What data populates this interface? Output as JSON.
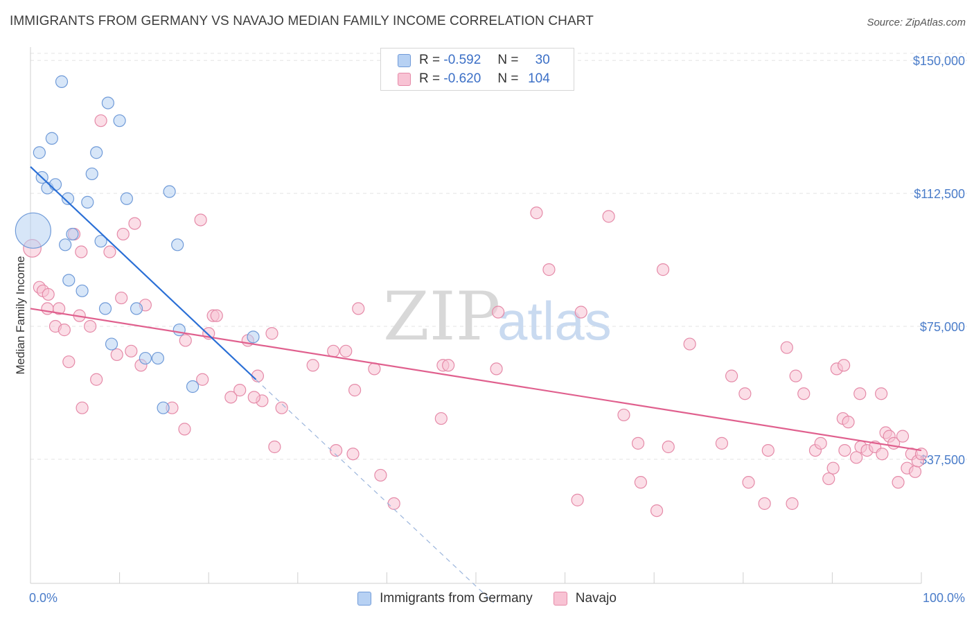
{
  "header": {
    "title": "IMMIGRANTS FROM GERMANY VS NAVAJO MEDIAN FAMILY INCOME CORRELATION CHART",
    "source": "Source: ZipAtlas.com"
  },
  "watermark": {
    "zip": "ZIP",
    "atlas": "atlas"
  },
  "legend": {
    "rows": [
      {
        "r_label": "R = ",
        "r_value": "-0.592",
        "n_label": "N = ",
        "n_value": "30"
      },
      {
        "r_label": "R = ",
        "r_value": "-0.620",
        "n_label": "N = ",
        "n_value": "104"
      }
    ]
  },
  "colors": {
    "germany_fill": "#b7d1f3",
    "germany_stroke": "#6f9ad8",
    "germany_line": "#2a6fd6",
    "navajo_fill": "#f8c3d4",
    "navajo_stroke": "#e58aa8",
    "navajo_line": "#e0608e",
    "tick_color": "#4a7cc9",
    "grid": "#e3e3e3"
  },
  "chart_data": {
    "type": "scatter",
    "ylabel": "Median Family Income",
    "xlabel": "",
    "x_range": [
      0,
      100
    ],
    "y_range": [
      2500,
      153750
    ],
    "x_tick_labels": [
      "0.0%",
      "100.0%"
    ],
    "y_ticks": [
      {
        "value": 150000,
        "label": "$150,000"
      },
      {
        "value": 112500,
        "label": "$112,500"
      },
      {
        "value": 75000,
        "label": "$75,000"
      },
      {
        "value": 37500,
        "label": "$37,500"
      }
    ],
    "grid": true,
    "series": [
      {
        "name": "Immigrants from Germany",
        "points": [
          [
            0.3,
            102000,
            3.0
          ],
          [
            3.5,
            144000,
            1
          ],
          [
            8.7,
            138000,
            1
          ],
          [
            10.0,
            133000,
            1
          ],
          [
            1.0,
            124000,
            1
          ],
          [
            2.4,
            128000,
            1
          ],
          [
            7.4,
            124000,
            1
          ],
          [
            1.3,
            117000,
            1
          ],
          [
            1.9,
            114000,
            1
          ],
          [
            2.8,
            115000,
            1
          ],
          [
            4.2,
            111000,
            1
          ],
          [
            6.4,
            110000,
            1
          ],
          [
            6.9,
            118000,
            1
          ],
          [
            10.8,
            111000,
            1
          ],
          [
            15.6,
            113000,
            1
          ],
          [
            4.7,
            101000,
            1
          ],
          [
            3.9,
            98000,
            1
          ],
          [
            7.9,
            99000,
            1
          ],
          [
            16.5,
            98000,
            1
          ],
          [
            4.3,
            88000,
            1
          ],
          [
            5.8,
            85000,
            1
          ],
          [
            8.4,
            80000,
            1
          ],
          [
            11.9,
            80000,
            1
          ],
          [
            9.1,
            70000,
            1
          ],
          [
            16.7,
            74000,
            1
          ],
          [
            25.0,
            72000,
            1
          ],
          [
            14.3,
            66000,
            1
          ],
          [
            12.9,
            66000,
            1
          ],
          [
            18.2,
            58000,
            1
          ],
          [
            14.9,
            52000,
            1
          ]
        ],
        "trend": {
          "x": [
            0,
            25.3
          ],
          "y": [
            120000,
            60000
          ]
        },
        "trend_dashed": {
          "x": [
            25.3,
            52
          ],
          "y": [
            60000,
            -3000
          ]
        }
      },
      {
        "name": "Navajo",
        "points": [
          [
            0.2,
            97000,
            1.5
          ],
          [
            1.0,
            86000,
            1
          ],
          [
            1.4,
            85000,
            1
          ],
          [
            2.0,
            84000,
            1
          ],
          [
            3.2,
            80000,
            1
          ],
          [
            1.9,
            80000,
            1
          ],
          [
            2.8,
            75000,
            1
          ],
          [
            3.8,
            74000,
            1
          ],
          [
            5.5,
            78000,
            1
          ],
          [
            6.7,
            75000,
            1
          ],
          [
            7.4,
            60000,
            1
          ],
          [
            5.8,
            52000,
            1
          ],
          [
            4.3,
            65000,
            1
          ],
          [
            7.9,
            133000,
            1
          ],
          [
            10.4,
            101000,
            1
          ],
          [
            11.7,
            104000,
            1
          ],
          [
            8.9,
            96000,
            1
          ],
          [
            10.2,
            83000,
            1
          ],
          [
            12.9,
            81000,
            1
          ],
          [
            9.7,
            67000,
            1
          ],
          [
            11.3,
            68000,
            1
          ],
          [
            12.4,
            64000,
            1
          ],
          [
            4.9,
            101000,
            1
          ],
          [
            5.7,
            96000,
            1
          ],
          [
            15.9,
            52000,
            1
          ],
          [
            17.4,
            71000,
            1
          ],
          [
            19.1,
            105000,
            1
          ],
          [
            19.3,
            60000,
            1
          ],
          [
            20.0,
            73000,
            1
          ],
          [
            20.5,
            78000,
            1
          ],
          [
            20.9,
            78000,
            1
          ],
          [
            22.5,
            55000,
            1
          ],
          [
            23.5,
            57000,
            1
          ],
          [
            24.4,
            71000,
            1
          ],
          [
            25.5,
            61000,
            1
          ],
          [
            26.0,
            54000,
            1
          ],
          [
            25.1,
            55000,
            1
          ],
          [
            27.1,
            73000,
            1
          ],
          [
            28.2,
            52000,
            1
          ],
          [
            17.3,
            46000,
            1
          ],
          [
            27.4,
            41000,
            1
          ],
          [
            31.7,
            64000,
            1
          ],
          [
            34.0,
            68000,
            1
          ],
          [
            35.4,
            68000,
            1
          ],
          [
            36.4,
            57000,
            1
          ],
          [
            36.8,
            80000,
            1
          ],
          [
            38.6,
            63000,
            1
          ],
          [
            34.3,
            40000,
            1
          ],
          [
            36.2,
            39000,
            1
          ],
          [
            39.3,
            33000,
            1
          ],
          [
            40.8,
            25000,
            1
          ],
          [
            46.3,
            64000,
            1
          ],
          [
            46.9,
            64000,
            1
          ],
          [
            46.1,
            49000,
            1
          ],
          [
            52.5,
            79000,
            1
          ],
          [
            52.3,
            63000,
            1
          ],
          [
            56.8,
            107000,
            1
          ],
          [
            58.2,
            91000,
            1
          ],
          [
            61.4,
            26000,
            1
          ],
          [
            61.8,
            79000,
            1
          ],
          [
            64.9,
            106000,
            1
          ],
          [
            66.6,
            50000,
            1
          ],
          [
            68.2,
            42000,
            1
          ],
          [
            68.5,
            31000,
            1
          ],
          [
            70.3,
            23000,
            1
          ],
          [
            71.0,
            91000,
            1
          ],
          [
            71.6,
            41000,
            1
          ],
          [
            74.0,
            70000,
            1
          ],
          [
            77.6,
            42000,
            1
          ],
          [
            78.7,
            61000,
            1
          ],
          [
            80.2,
            56000,
            1
          ],
          [
            80.6,
            31000,
            1
          ],
          [
            82.4,
            25000,
            1
          ],
          [
            82.8,
            40000,
            1
          ],
          [
            84.9,
            69000,
            1
          ],
          [
            85.5,
            25000,
            1
          ],
          [
            85.9,
            61000,
            1
          ],
          [
            86.8,
            56000,
            1
          ],
          [
            88.1,
            40000,
            1
          ],
          [
            88.7,
            42000,
            1
          ],
          [
            89.6,
            32000,
            1
          ],
          [
            90.1,
            35000,
            1
          ],
          [
            90.5,
            63000,
            1
          ],
          [
            91.2,
            49000,
            1
          ],
          [
            91.4,
            40000,
            1
          ],
          [
            91.8,
            48000,
            1
          ],
          [
            92.7,
            38000,
            1
          ],
          [
            93.2,
            41000,
            1
          ],
          [
            93.9,
            40000,
            1
          ],
          [
            94.8,
            41000,
            1
          ],
          [
            95.6,
            39000,
            1
          ],
          [
            96.0,
            45000,
            1
          ],
          [
            96.4,
            44000,
            1
          ],
          [
            96.9,
            42000,
            1
          ],
          [
            97.4,
            31000,
            1
          ],
          [
            97.9,
            44000,
            1
          ],
          [
            98.4,
            35000,
            1
          ],
          [
            98.9,
            39000,
            1
          ],
          [
            99.3,
            34000,
            1
          ],
          [
            99.6,
            37000,
            1
          ],
          [
            100.0,
            39000,
            1
          ],
          [
            93.1,
            56000,
            1
          ],
          [
            95.5,
            56000,
            1
          ],
          [
            91.3,
            64000,
            1
          ]
        ],
        "trend": {
          "x": [
            0,
            100
          ],
          "y": [
            80000,
            40000
          ]
        }
      }
    ]
  },
  "bottom_legend": {
    "items": [
      {
        "label": "Immigrants from Germany"
      },
      {
        "label": "Navajo"
      }
    ]
  }
}
